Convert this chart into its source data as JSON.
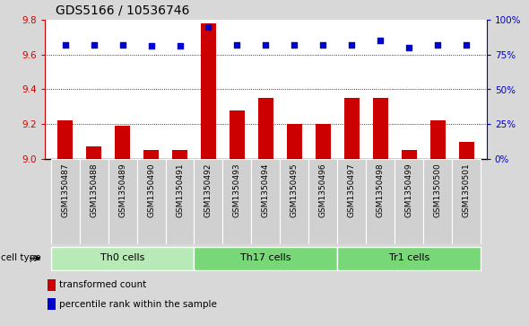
{
  "title": "GDS5166 / 10536746",
  "samples": [
    "GSM1350487",
    "GSM1350488",
    "GSM1350489",
    "GSM1350490",
    "GSM1350491",
    "GSM1350492",
    "GSM1350493",
    "GSM1350494",
    "GSM1350495",
    "GSM1350496",
    "GSM1350497",
    "GSM1350498",
    "GSM1350499",
    "GSM1350500",
    "GSM1350501"
  ],
  "bar_values": [
    9.22,
    9.07,
    9.19,
    9.05,
    9.05,
    9.78,
    9.28,
    9.35,
    9.2,
    9.2,
    9.35,
    9.35,
    9.05,
    9.22,
    9.1
  ],
  "dot_values": [
    82,
    82,
    82,
    81,
    81,
    95,
    82,
    82,
    82,
    82,
    82,
    85,
    80,
    82,
    82
  ],
  "bar_color": "#cc0000",
  "dot_color": "#0000cc",
  "ylim_left": [
    9.0,
    9.8
  ],
  "ylim_right": [
    0,
    100
  ],
  "yticks_left": [
    9.0,
    9.2,
    9.4,
    9.6,
    9.8
  ],
  "yticks_right": [
    0,
    25,
    50,
    75,
    100
  ],
  "ytick_labels_right": [
    "0%",
    "25%",
    "50%",
    "75%",
    "100%"
  ],
  "grid_lines": [
    9.2,
    9.4,
    9.6
  ],
  "groups": [
    {
      "label": "Th0 cells",
      "start": 0,
      "end": 4,
      "color": "#b8eab8"
    },
    {
      "label": "Th17 cells",
      "start": 5,
      "end": 9,
      "color": "#78d878"
    },
    {
      "label": "Tr1 cells",
      "start": 10,
      "end": 14,
      "color": "#78d878"
    }
  ],
  "cell_type_label": "cell type",
  "legend_bar_label": "transformed count",
  "legend_dot_label": "percentile rank within the sample",
  "background_color": "#d8d8d8",
  "plot_bg_color": "#ffffff",
  "xtick_bg_color": "#d0d0d0",
  "title_fontsize": 10,
  "axis_color_left": "#cc0000",
  "axis_color_right": "#0000cc"
}
